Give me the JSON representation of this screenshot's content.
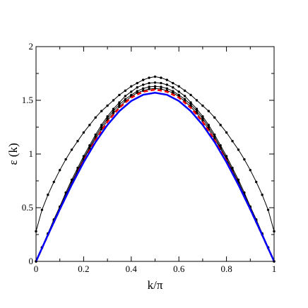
{
  "chart_data": {
    "type": "line",
    "title": "",
    "xlabel": "k/π",
    "ylabel": "ε (k)",
    "xlim": [
      0,
      1
    ],
    "ylim": [
      0,
      2
    ],
    "grid": false,
    "x_ticks": [
      0,
      0.2,
      0.4,
      0.6,
      0.8,
      1
    ],
    "x_tick_labels": [
      "0",
      "0.2",
      "0.4",
      "0.6",
      "0.8",
      "1"
    ],
    "y_ticks": [
      0,
      0.5,
      1,
      1.5,
      2
    ],
    "y_tick_labels": [
      "0",
      "0.5",
      "1",
      "1.5",
      "2"
    ],
    "series": [
      {
        "color": "#000000",
        "style": "solid",
        "marker": "dot",
        "points": [
          [
            0,
            0.28
          ],
          [
            0.025,
            0.48
          ],
          [
            0.05,
            0.62
          ],
          [
            0.075,
            0.74
          ],
          [
            0.1,
            0.85
          ],
          [
            0.125,
            0.95
          ],
          [
            0.15,
            1.04
          ],
          [
            0.175,
            1.12
          ],
          [
            0.2,
            1.2
          ],
          [
            0.225,
            1.27
          ],
          [
            0.25,
            1.34
          ],
          [
            0.275,
            1.4
          ],
          [
            0.3,
            1.45
          ],
          [
            0.325,
            1.5
          ],
          [
            0.35,
            1.55
          ],
          [
            0.375,
            1.59
          ],
          [
            0.4,
            1.63
          ],
          [
            0.425,
            1.66
          ],
          [
            0.45,
            1.69
          ],
          [
            0.475,
            1.71
          ],
          [
            0.5,
            1.72
          ],
          [
            0.525,
            1.71
          ],
          [
            0.55,
            1.69
          ],
          [
            0.575,
            1.66
          ],
          [
            0.6,
            1.63
          ],
          [
            0.625,
            1.59
          ],
          [
            0.65,
            1.55
          ],
          [
            0.675,
            1.5
          ],
          [
            0.7,
            1.45
          ],
          [
            0.725,
            1.4
          ],
          [
            0.75,
            1.34
          ],
          [
            0.775,
            1.27
          ],
          [
            0.8,
            1.2
          ],
          [
            0.825,
            1.12
          ],
          [
            0.85,
            1.04
          ],
          [
            0.875,
            0.95
          ],
          [
            0.9,
            0.85
          ],
          [
            0.925,
            0.74
          ],
          [
            0.95,
            0.62
          ],
          [
            0.975,
            0.48
          ],
          [
            1,
            0.28
          ]
        ]
      },
      {
        "color": "#000000",
        "style": "solid",
        "marker": "dot",
        "points": [
          [
            0,
            0
          ],
          [
            0.025,
            0.13
          ],
          [
            0.05,
            0.26
          ],
          [
            0.075,
            0.39
          ],
          [
            0.1,
            0.51
          ],
          [
            0.125,
            0.64
          ],
          [
            0.15,
            0.76
          ],
          [
            0.175,
            0.87
          ],
          [
            0.2,
            0.98
          ],
          [
            0.225,
            1.08
          ],
          [
            0.25,
            1.18
          ],
          [
            0.275,
            1.27
          ],
          [
            0.3,
            1.35
          ],
          [
            0.325,
            1.42
          ],
          [
            0.35,
            1.48
          ],
          [
            0.375,
            1.54
          ],
          [
            0.4,
            1.58
          ],
          [
            0.425,
            1.62
          ],
          [
            0.45,
            1.645
          ],
          [
            0.475,
            1.66
          ],
          [
            0.5,
            1.665
          ],
          [
            0.525,
            1.66
          ],
          [
            0.55,
            1.645
          ],
          [
            0.575,
            1.62
          ],
          [
            0.6,
            1.58
          ],
          [
            0.625,
            1.54
          ],
          [
            0.65,
            1.48
          ],
          [
            0.675,
            1.42
          ],
          [
            0.7,
            1.35
          ],
          [
            0.725,
            1.27
          ],
          [
            0.75,
            1.18
          ],
          [
            0.775,
            1.08
          ],
          [
            0.8,
            0.98
          ],
          [
            0.825,
            0.87
          ],
          [
            0.85,
            0.76
          ],
          [
            0.875,
            0.64
          ],
          [
            0.9,
            0.51
          ],
          [
            0.925,
            0.39
          ],
          [
            0.95,
            0.26
          ],
          [
            0.975,
            0.13
          ],
          [
            1,
            0
          ]
        ]
      },
      {
        "color": "#000000",
        "style": "solid",
        "marker": "dot",
        "points": [
          [
            0,
            0
          ],
          [
            0.025,
            0.13
          ],
          [
            0.05,
            0.25
          ],
          [
            0.075,
            0.38
          ],
          [
            0.1,
            0.5
          ],
          [
            0.125,
            0.62
          ],
          [
            0.15,
            0.74
          ],
          [
            0.175,
            0.85
          ],
          [
            0.2,
            0.96
          ],
          [
            0.225,
            1.06
          ],
          [
            0.25,
            1.16
          ],
          [
            0.275,
            1.25
          ],
          [
            0.3,
            1.33
          ],
          [
            0.325,
            1.4
          ],
          [
            0.35,
            1.46
          ],
          [
            0.375,
            1.51
          ],
          [
            0.4,
            1.55
          ],
          [
            0.425,
            1.585
          ],
          [
            0.45,
            1.61
          ],
          [
            0.475,
            1.625
          ],
          [
            0.5,
            1.63
          ],
          [
            0.525,
            1.625
          ],
          [
            0.55,
            1.61
          ],
          [
            0.575,
            1.585
          ],
          [
            0.6,
            1.55
          ],
          [
            0.625,
            1.51
          ],
          [
            0.65,
            1.46
          ],
          [
            0.675,
            1.4
          ],
          [
            0.7,
            1.33
          ],
          [
            0.725,
            1.25
          ],
          [
            0.75,
            1.16
          ],
          [
            0.775,
            1.06
          ],
          [
            0.8,
            0.96
          ],
          [
            0.825,
            0.85
          ],
          [
            0.85,
            0.74
          ],
          [
            0.875,
            0.62
          ],
          [
            0.9,
            0.5
          ],
          [
            0.925,
            0.38
          ],
          [
            0.95,
            0.25
          ],
          [
            0.975,
            0.13
          ],
          [
            1,
            0
          ]
        ]
      },
      {
        "color": "#000000",
        "style": "solid",
        "marker": "dot",
        "points": [
          [
            0,
            0
          ],
          [
            0.025,
            0.125
          ],
          [
            0.05,
            0.25
          ],
          [
            0.075,
            0.37
          ],
          [
            0.1,
            0.49
          ],
          [
            0.125,
            0.61
          ],
          [
            0.15,
            0.73
          ],
          [
            0.175,
            0.84
          ],
          [
            0.2,
            0.95
          ],
          [
            0.225,
            1.05
          ],
          [
            0.25,
            1.14
          ],
          [
            0.275,
            1.23
          ],
          [
            0.3,
            1.31
          ],
          [
            0.325,
            1.38
          ],
          [
            0.35,
            1.44
          ],
          [
            0.375,
            1.49
          ],
          [
            0.4,
            1.535
          ],
          [
            0.425,
            1.57
          ],
          [
            0.45,
            1.59
          ],
          [
            0.475,
            1.605
          ],
          [
            0.5,
            1.61
          ],
          [
            0.525,
            1.605
          ],
          [
            0.55,
            1.59
          ],
          [
            0.575,
            1.57
          ],
          [
            0.6,
            1.535
          ],
          [
            0.625,
            1.49
          ],
          [
            0.65,
            1.44
          ],
          [
            0.675,
            1.38
          ],
          [
            0.7,
            1.31
          ],
          [
            0.725,
            1.23
          ],
          [
            0.75,
            1.14
          ],
          [
            0.775,
            1.05
          ],
          [
            0.8,
            0.95
          ],
          [
            0.825,
            0.84
          ],
          [
            0.85,
            0.73
          ],
          [
            0.875,
            0.61
          ],
          [
            0.9,
            0.49
          ],
          [
            0.925,
            0.37
          ],
          [
            0.95,
            0.25
          ],
          [
            0.975,
            0.125
          ],
          [
            1,
            0
          ]
        ]
      },
      {
        "color": "#ff0000",
        "style": "dashed",
        "marker": "none",
        "points": [
          [
            0,
            0
          ],
          [
            0.05,
            0.245
          ],
          [
            0.1,
            0.485
          ],
          [
            0.15,
            0.715
          ],
          [
            0.2,
            0.935
          ],
          [
            0.25,
            1.13
          ],
          [
            0.3,
            1.3
          ],
          [
            0.35,
            1.43
          ],
          [
            0.4,
            1.525
          ],
          [
            0.45,
            1.58
          ],
          [
            0.5,
            1.6
          ],
          [
            0.55,
            1.58
          ],
          [
            0.6,
            1.525
          ],
          [
            0.65,
            1.43
          ],
          [
            0.7,
            1.3
          ],
          [
            0.75,
            1.13
          ],
          [
            0.8,
            0.935
          ],
          [
            0.85,
            0.715
          ],
          [
            0.9,
            0.485
          ],
          [
            0.95,
            0.245
          ],
          [
            1,
            0
          ]
        ]
      },
      {
        "color": "#0000ff",
        "style": "solid",
        "marker": "none",
        "points": [
          [
            0,
            0
          ],
          [
            0.05,
            0.2457
          ],
          [
            0.1,
            0.4854
          ],
          [
            0.15,
            0.7131
          ],
          [
            0.2,
            0.9233
          ],
          [
            0.25,
            1.1107
          ],
          [
            0.3,
            1.2708
          ],
          [
            0.35,
            1.3996
          ],
          [
            0.4,
            1.4939
          ],
          [
            0.45,
            1.5514
          ],
          [
            0.5,
            1.5708
          ],
          [
            0.55,
            1.5514
          ],
          [
            0.6,
            1.4939
          ],
          [
            0.65,
            1.3996
          ],
          [
            0.7,
            1.2708
          ],
          [
            0.75,
            1.1107
          ],
          [
            0.8,
            0.9233
          ],
          [
            0.85,
            0.7131
          ],
          [
            0.9,
            0.4854
          ],
          [
            0.95,
            0.2457
          ],
          [
            1,
            0
          ]
        ]
      }
    ]
  }
}
